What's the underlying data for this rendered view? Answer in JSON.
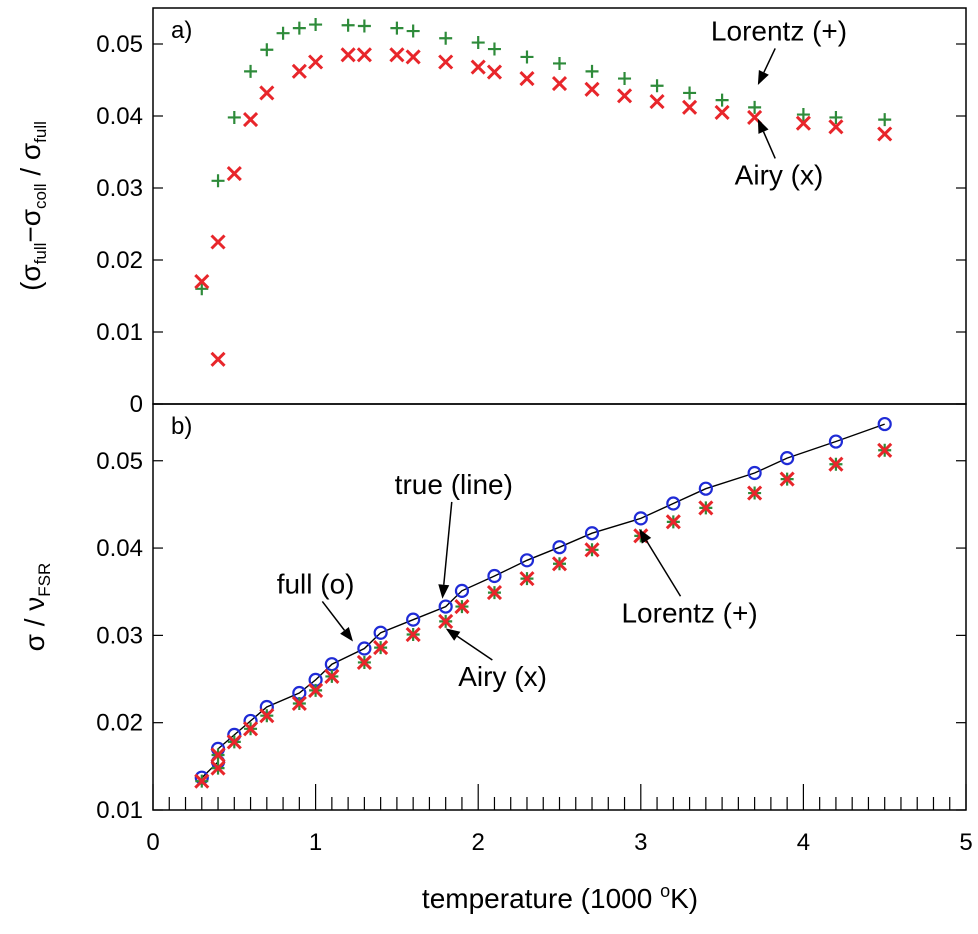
{
  "chart_data": [
    {
      "panel_label": "a)",
      "type": "scatter",
      "ylabel": {
        "main": "(σ",
        "sub1": "full",
        "mid1": "−σ",
        "sub2": "coll",
        "mid2": " / σ",
        "sub3": "full"
      },
      "ylim": [
        0,
        0.055
      ],
      "yticks": [
        "0",
        "0.01",
        "0.02",
        "0.03",
        "0.04",
        "0.05"
      ],
      "yticks_values": [
        0,
        0.01,
        0.02,
        0.03,
        0.04,
        0.05
      ],
      "xlim": [
        0,
        5
      ],
      "series": [
        {
          "name": "Lorentz (+)",
          "marker": "plus",
          "color": "#2e8b3a",
          "x": [
            0.3,
            0.4,
            0.5,
            0.6,
            0.7,
            0.8,
            0.9,
            1.0,
            1.2,
            1.3,
            1.5,
            1.6,
            1.8,
            2.0,
            2.1,
            2.3,
            2.5,
            2.7,
            2.9,
            3.1,
            3.3,
            3.5,
            3.7,
            4.0,
            4.2,
            4.5
          ],
          "y": [
            0.016,
            0.031,
            0.0398,
            0.0462,
            0.0492,
            0.0515,
            0.0522,
            0.0527,
            0.0526,
            0.0525,
            0.0522,
            0.0518,
            0.0508,
            0.0502,
            0.0493,
            0.0482,
            0.0473,
            0.0462,
            0.0452,
            0.0442,
            0.0432,
            0.0422,
            0.0412,
            0.0402,
            0.0398,
            0.0395
          ]
        },
        {
          "name": "Airy (x)",
          "marker": "cross",
          "color": "#e8262b",
          "x": [
            0.3,
            0.4,
            0.4,
            0.5,
            0.6,
            0.7,
            0.9,
            1.0,
            1.2,
            1.3,
            1.5,
            1.6,
            1.8,
            2.0,
            2.1,
            2.3,
            2.5,
            2.7,
            2.9,
            3.1,
            3.3,
            3.5,
            3.7,
            4.0,
            4.2,
            4.5
          ],
          "y": [
            0.017,
            0.0062,
            0.0225,
            0.032,
            0.0395,
            0.0432,
            0.0462,
            0.0475,
            0.0485,
            0.0485,
            0.0485,
            0.0482,
            0.0475,
            0.0468,
            0.0461,
            0.0452,
            0.0445,
            0.0437,
            0.0428,
            0.042,
            0.0412,
            0.0405,
            0.0398,
            0.039,
            0.0385,
            0.0375
          ]
        }
      ],
      "annotations": [
        {
          "text": "Lorentz (+)",
          "arrow_to": [
            3.72,
            0.0443
          ],
          "label_at": [
            3.85,
            0.0505
          ]
        },
        {
          "text": "Airy (x)",
          "arrow_to": [
            3.72,
            0.0396
          ],
          "label_at": [
            3.85,
            0.0305
          ]
        }
      ]
    },
    {
      "panel_label": "b)",
      "type": "scatter",
      "ylabel": {
        "main": "σ / ν",
        "sub1": "FSR"
      },
      "xlabel": {
        "main": "temperature (1000 ",
        "sup": "o",
        "tail": "K)"
      },
      "ylim": [
        0.01,
        0.0565
      ],
      "yticks": [
        "0.01",
        "0.02",
        "0.03",
        "0.04",
        "0.05"
      ],
      "yticks_values": [
        0.01,
        0.02,
        0.03,
        0.04,
        0.05
      ],
      "xlim": [
        0,
        5
      ],
      "xticks": [
        "0",
        "1",
        "2",
        "3",
        "4",
        "5"
      ],
      "xticks_values": [
        0,
        1,
        2,
        3,
        4,
        5
      ],
      "x": [
        0.3,
        0.4,
        0.4,
        0.5,
        0.6,
        0.7,
        0.9,
        1.0,
        1.1,
        1.3,
        1.4,
        1.6,
        1.8,
        1.9,
        2.1,
        2.3,
        2.5,
        2.7,
        3.0,
        3.2,
        3.4,
        3.7,
        3.9,
        4.2,
        4.5
      ],
      "series": [
        {
          "name": "true (line)",
          "marker": "line",
          "color": "#000000",
          "y": [
            0.0137,
            0.0155,
            0.017,
            0.0186,
            0.0202,
            0.0218,
            0.0234,
            0.0249,
            0.0267,
            0.0285,
            0.0303,
            0.0318,
            0.0333,
            0.0351,
            0.0368,
            0.0386,
            0.0401,
            0.0417,
            0.0434,
            0.0451,
            0.0468,
            0.0486,
            0.0503,
            0.0522,
            0.0542
          ]
        },
        {
          "name": "full (o)",
          "marker": "circle",
          "color": "#1f2bd6",
          "y": [
            0.0137,
            0.0155,
            0.017,
            0.0186,
            0.0202,
            0.0218,
            0.0234,
            0.0249,
            0.0267,
            0.0285,
            0.0303,
            0.0318,
            0.0333,
            0.0351,
            0.0368,
            0.0386,
            0.0401,
            0.0417,
            0.0434,
            0.0451,
            0.0468,
            0.0486,
            0.0503,
            0.0522,
            0.0542
          ]
        },
        {
          "name": "Lorentz (+)",
          "marker": "plus",
          "color": "#2e8b3a",
          "y": [
            0.0133,
            0.0148,
            0.0163,
            0.0178,
            0.0193,
            0.0208,
            0.0222,
            0.0237,
            0.0253,
            0.0269,
            0.0286,
            0.0301,
            0.0316,
            0.0333,
            0.0349,
            0.0365,
            0.0382,
            0.0398,
            0.0414,
            0.043,
            0.0446,
            0.0463,
            0.0479,
            0.0496,
            0.0512
          ]
        },
        {
          "name": "Airy (x)",
          "marker": "cross",
          "color": "#e8262b",
          "y": [
            0.0133,
            0.0148,
            0.0163,
            0.0178,
            0.0193,
            0.0208,
            0.0222,
            0.0237,
            0.0253,
            0.0269,
            0.0286,
            0.0301,
            0.0316,
            0.0333,
            0.0349,
            0.0365,
            0.0382,
            0.0398,
            0.0414,
            0.043,
            0.0446,
            0.0463,
            0.0479,
            0.0496,
            0.0512
          ]
        }
      ],
      "annotations": [
        {
          "text": "true (line)",
          "arrow_to": [
            1.78,
            0.0342
          ],
          "label_at": [
            1.85,
            0.0462
          ]
        },
        {
          "text": "full (o)",
          "arrow_to": [
            1.23,
            0.0293
          ],
          "label_at": [
            1.0,
            0.0348
          ]
        },
        {
          "text": "Lorentz (+)",
          "arrow_to": [
            2.99,
            0.0422
          ],
          "label_at": [
            3.3,
            0.0315
          ]
        },
        {
          "text": "Airy (x)",
          "arrow_to": [
            1.8,
            0.0308
          ],
          "label_at": [
            2.15,
            0.0242
          ]
        }
      ]
    }
  ]
}
